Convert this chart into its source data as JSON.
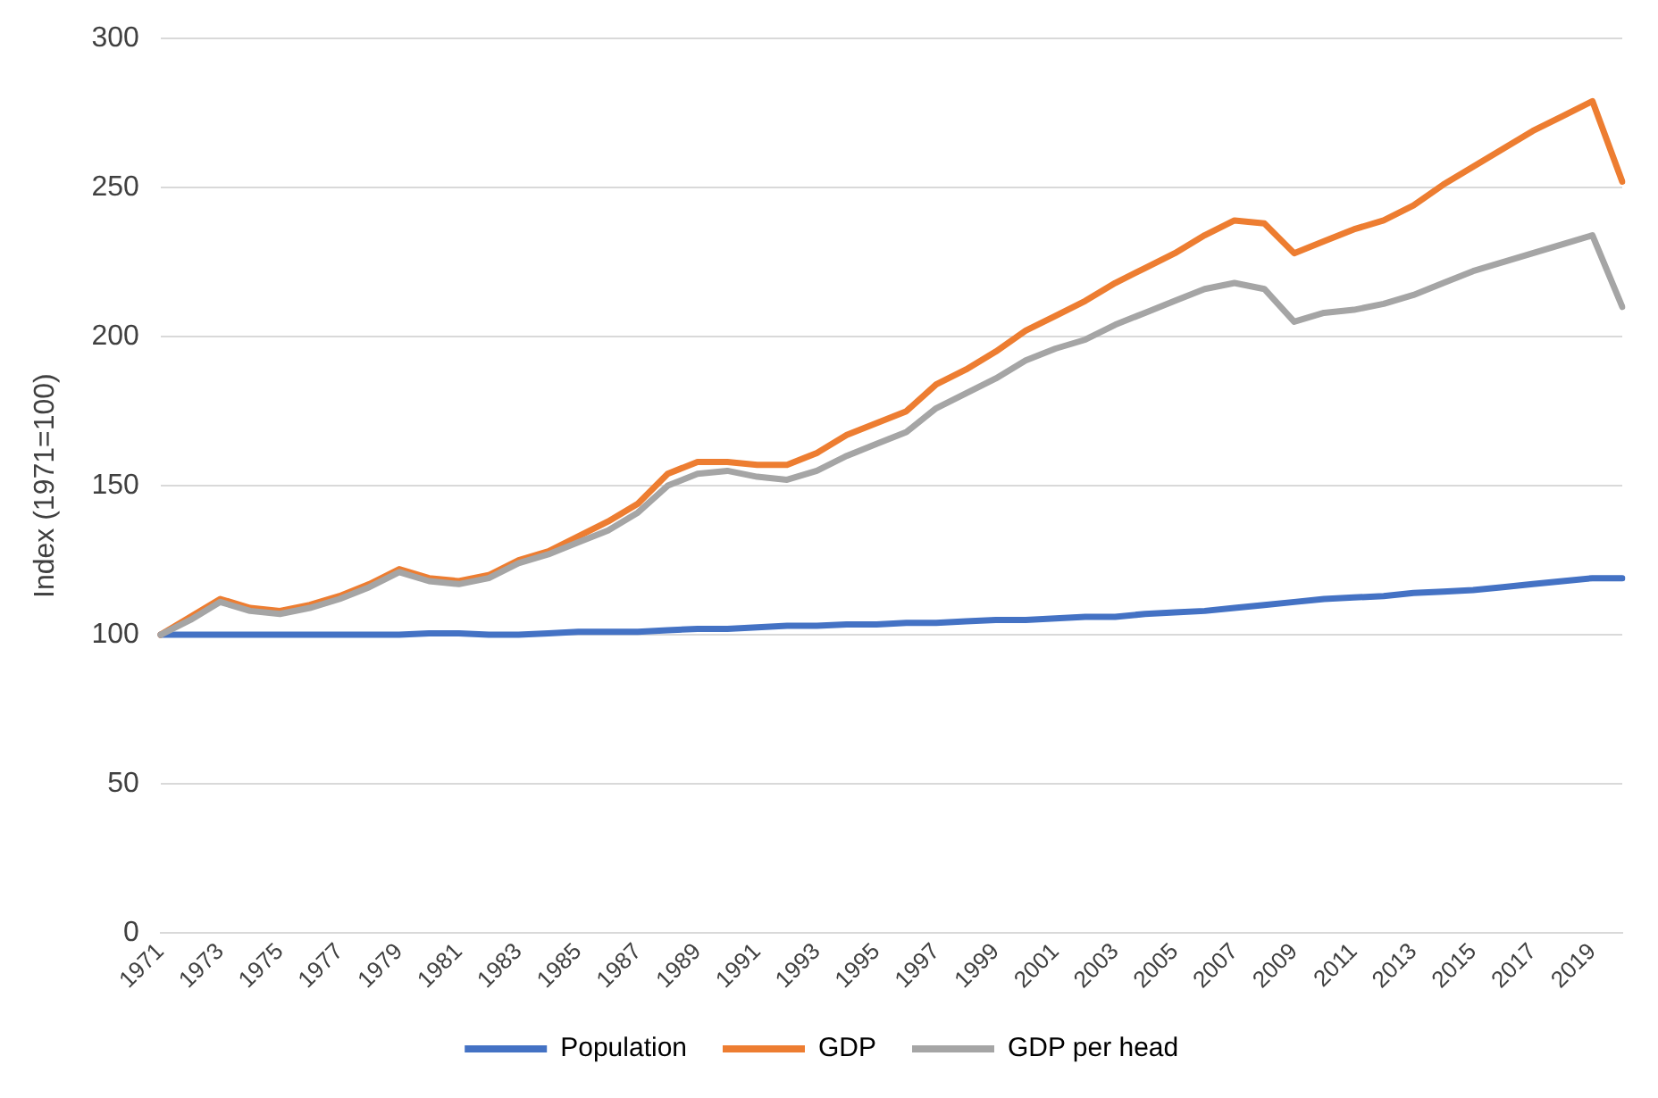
{
  "chart_data": {
    "type": "line",
    "ylabel": "Index (1971=100)",
    "categories": [
      "1971",
      null,
      "1973",
      null,
      "1975",
      null,
      "1977",
      null,
      "1979",
      null,
      "1981",
      null,
      "1983",
      null,
      "1985",
      null,
      "1987",
      null,
      "1989",
      null,
      "1991",
      null,
      "1993",
      null,
      "1995",
      null,
      "1997",
      null,
      "1999",
      null,
      "2001",
      null,
      "2003",
      null,
      "2005",
      null,
      "2007",
      null,
      "2009",
      null,
      "2011",
      null,
      "2013",
      null,
      "2015",
      null,
      "2017",
      null,
      "2019",
      null
    ],
    "series": [
      {
        "name": "Population",
        "color": "#4472c4",
        "values": [
          100,
          100,
          100,
          100,
          100,
          100,
          100,
          100,
          100,
          100.5,
          100.5,
          100,
          100,
          100.5,
          101,
          101,
          101,
          101.5,
          102,
          102,
          102.5,
          103,
          103,
          103.5,
          103.5,
          104,
          104,
          104.5,
          105,
          105,
          105.5,
          106,
          106,
          107,
          107.5,
          108,
          109,
          110,
          111,
          112,
          112.5,
          113,
          114,
          114.5,
          115,
          116,
          117,
          118,
          119,
          119
        ]
      },
      {
        "name": "GDP",
        "color": "#ed7d31",
        "values": [
          100,
          106,
          112,
          109,
          108,
          110,
          113,
          117,
          122,
          119,
          118,
          120,
          125,
          128,
          133,
          138,
          144,
          154,
          158,
          158,
          157,
          157,
          161,
          167,
          171,
          175,
          184,
          189,
          195,
          202,
          207,
          212,
          218,
          223,
          228,
          234,
          239,
          238,
          228,
          232,
          236,
          239,
          244,
          251,
          257,
          263,
          269,
          274,
          279,
          252
        ]
      },
      {
        "name": "GDP per head",
        "color": "#a5a5a5",
        "values": [
          100,
          105,
          111,
          108,
          107,
          109,
          112,
          116,
          121,
          118,
          117,
          119,
          124,
          127,
          131,
          135,
          141,
          150,
          154,
          155,
          153,
          152,
          155,
          160,
          164,
          168,
          176,
          181,
          186,
          192,
          196,
          199,
          204,
          208,
          212,
          216,
          218,
          216,
          205,
          208,
          209,
          211,
          214,
          218,
          222,
          225,
          228,
          231,
          234,
          210
        ]
      }
    ],
    "ylim": [
      0,
      300
    ],
    "yticks": [
      0,
      50,
      100,
      150,
      200,
      250,
      300
    ],
    "grid": "y",
    "legend": "bottom",
    "marker": "none",
    "line_style": "solid"
  }
}
